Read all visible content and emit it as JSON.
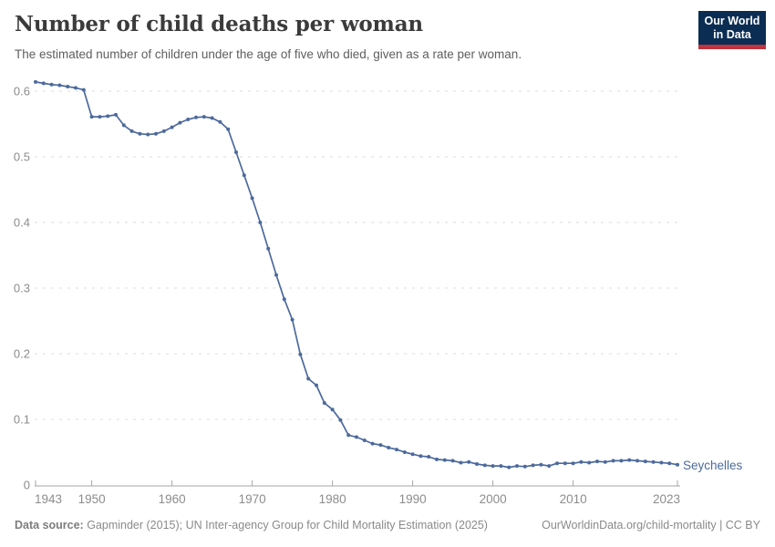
{
  "header": {
    "title": "Number of child deaths per woman",
    "subtitle": "The estimated number of children under the age of five who died, given as a rate per woman.",
    "logo": {
      "line1": "Our World",
      "line2": "in Data"
    }
  },
  "chart_data": {
    "type": "line",
    "title": "Number of child deaths per woman",
    "entity_label": "Seychelles",
    "xlabel": "",
    "ylabel": "",
    "xlim": [
      1943,
      2023
    ],
    "ylim": [
      0,
      0.6
    ],
    "grid": "horizontal-dashed",
    "legend": "entity-label-right-of-line-end",
    "x_ticks": [
      1943,
      1950,
      1960,
      1970,
      1980,
      1990,
      2000,
      2010,
      2023
    ],
    "x_tick_labels": [
      "1943",
      "1950",
      "1960",
      "1970",
      "1980",
      "1990",
      "2000",
      "2010",
      "2023"
    ],
    "y_ticks": [
      0,
      0.1,
      0.2,
      0.3,
      0.4,
      0.5,
      0.6
    ],
    "y_tick_labels": [
      "0",
      "0.1",
      "0.2",
      "0.3",
      "0.4",
      "0.5",
      "0.6"
    ],
    "series": [
      {
        "name": "Seychelles",
        "color": "#4c6a9c",
        "years": [
          1943,
          1944,
          1945,
          1946,
          1947,
          1948,
          1949,
          1950,
          1951,
          1952,
          1953,
          1954,
          1955,
          1956,
          1957,
          1958,
          1959,
          1960,
          1961,
          1962,
          1963,
          1964,
          1965,
          1966,
          1967,
          1968,
          1969,
          1970,
          1971,
          1972,
          1973,
          1974,
          1975,
          1976,
          1977,
          1978,
          1979,
          1980,
          1981,
          1982,
          1983,
          1984,
          1985,
          1986,
          1987,
          1988,
          1989,
          1990,
          1991,
          1992,
          1993,
          1994,
          1995,
          1996,
          1997,
          1998,
          1999,
          2000,
          2001,
          2002,
          2003,
          2004,
          2005,
          2006,
          2007,
          2008,
          2009,
          2010,
          2011,
          2012,
          2013,
          2014,
          2015,
          2016,
          2017,
          2018,
          2019,
          2020,
          2021,
          2022,
          2023
        ],
        "values": [
          0.614,
          0.612,
          0.61,
          0.609,
          0.607,
          0.605,
          0.602,
          0.561,
          0.561,
          0.562,
          0.564,
          0.548,
          0.539,
          0.535,
          0.534,
          0.535,
          0.539,
          0.545,
          0.552,
          0.557,
          0.56,
          0.561,
          0.559,
          0.553,
          0.542,
          0.507,
          0.472,
          0.437,
          0.4,
          0.36,
          0.32,
          0.283,
          0.252,
          0.199,
          0.162,
          0.152,
          0.125,
          0.115,
          0.099,
          0.076,
          0.073,
          0.068,
          0.063,
          0.061,
          0.057,
          0.054,
          0.05,
          0.047,
          0.044,
          0.043,
          0.039,
          0.038,
          0.037,
          0.034,
          0.035,
          0.032,
          0.03,
          0.029,
          0.029,
          0.027,
          0.029,
          0.028,
          0.03,
          0.031,
          0.029,
          0.033,
          0.033,
          0.033,
          0.035,
          0.034,
          0.036,
          0.035,
          0.037,
          0.037,
          0.038,
          0.037,
          0.036,
          0.035,
          0.034,
          0.033,
          0.031
        ]
      }
    ]
  },
  "footer": {
    "source_label": "Data source:",
    "source_text": " Gapminder (2015); UN Inter-agency Group for Child Mortality Estimation (2025)",
    "rights": "OurWorldinData.org/child-mortality | CC BY"
  },
  "colors": {
    "line": "#4c6a9c",
    "grid": "#dcdcdc",
    "axis": "#a5a5a5",
    "tick_text": "#8c8c8c",
    "title": "#3b3b3b",
    "subtitle": "#5e5e5e",
    "footer": "#8a8a8a",
    "logo_bg": "#0c2d53",
    "logo_accent": "#c0343f"
  }
}
